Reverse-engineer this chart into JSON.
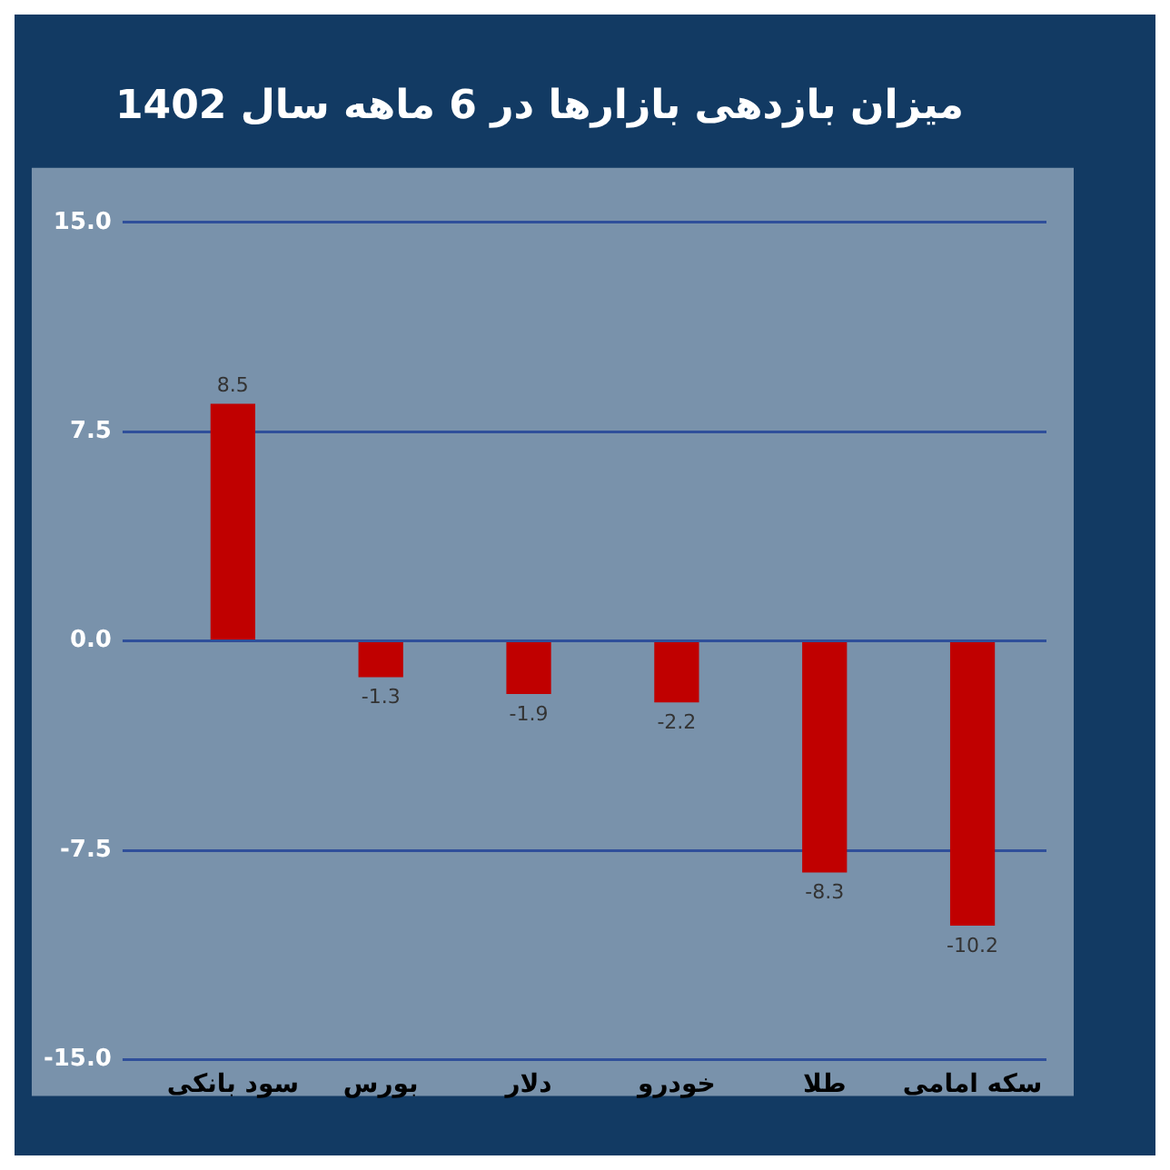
{
  "chart_data": {
    "type": "bar",
    "title": "میزان بازدهی بازارها در 6 ماهه سال 1402",
    "categories": [
      "سود بانکی",
      "بورس",
      "دلار",
      "خودرو",
      "طلا",
      "سکه امامی"
    ],
    "values": [
      8.5,
      -1.3,
      -1.9,
      -2.2,
      -8.3,
      -10.2
    ],
    "color": "#c00000",
    "ylim": [
      -15,
      15
    ],
    "yticks": [
      {
        "value": 15,
        "label": "15.0"
      },
      {
        "value": 7.5,
        "label": "7.5"
      },
      {
        "value": 0,
        "label": "0.0"
      },
      {
        "value": -7.5,
        "label": "-7.5"
      },
      {
        "value": -15,
        "label": "-15.0"
      }
    ],
    "grid": "y",
    "data_labels": true,
    "legend": false
  }
}
